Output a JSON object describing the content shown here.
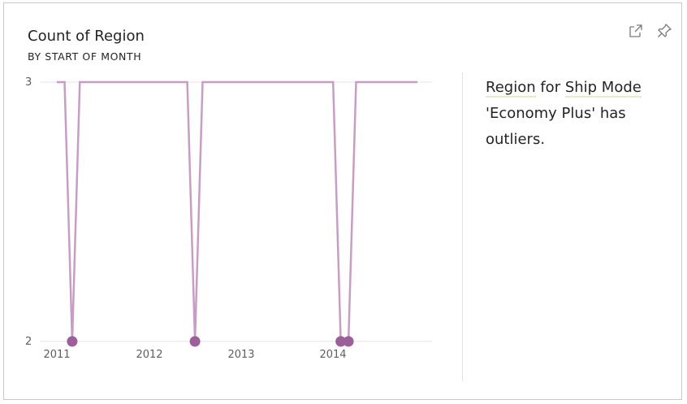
{
  "card": {
    "title": "Count of Region",
    "subtitle": "BY START OF MONTH"
  },
  "toolbar": {
    "expand_icon": "expand-icon",
    "pin_icon": "pin-icon"
  },
  "insight": {
    "term1": "Region",
    "connector1": " for ",
    "term2": "Ship Mode",
    "rest": " 'Economy Plus' has outliers."
  },
  "colors": {
    "line": "#c89dc4",
    "outlier_marker": "#9c5f9a",
    "grid": "#e6e6e6",
    "term_underline": "#e6ebc9"
  },
  "chart_data": {
    "type": "line",
    "title": "Count of Region",
    "subtitle": "BY START OF MONTH",
    "xlabel": "",
    "ylabel": "",
    "x": [
      "2011-01",
      "2011-02",
      "2011-03",
      "2011-04",
      "2011-05",
      "2011-06",
      "2011-07",
      "2011-08",
      "2011-09",
      "2011-10",
      "2011-11",
      "2011-12",
      "2012-01",
      "2012-02",
      "2012-03",
      "2012-04",
      "2012-05",
      "2012-06",
      "2012-07",
      "2012-08",
      "2012-09",
      "2012-10",
      "2012-11",
      "2012-12",
      "2013-01",
      "2013-02",
      "2013-03",
      "2013-04",
      "2013-05",
      "2013-06",
      "2013-07",
      "2013-08",
      "2013-09",
      "2013-10",
      "2013-11",
      "2013-12",
      "2014-01",
      "2014-02",
      "2014-03",
      "2014-04",
      "2014-05",
      "2014-06",
      "2014-07",
      "2014-08",
      "2014-09",
      "2014-10",
      "2014-11",
      "2014-12"
    ],
    "series": [
      {
        "values": [
          3,
          3,
          2,
          3,
          3,
          3,
          3,
          3,
          3,
          3,
          3,
          3,
          3,
          3,
          3,
          3,
          3,
          3,
          2,
          3,
          3,
          3,
          3,
          3,
          3,
          3,
          3,
          3,
          3,
          3,
          3,
          3,
          3,
          3,
          3,
          3,
          3,
          2,
          2,
          3,
          3,
          3,
          3,
          3,
          3,
          3,
          3,
          3
        ]
      }
    ],
    "outliers": [
      {
        "x": "2011-03",
        "y": 2
      },
      {
        "x": "2012-07",
        "y": 2
      },
      {
        "x": "2014-02",
        "y": 2
      },
      {
        "x": "2014-03",
        "y": 2
      }
    ],
    "ylim": [
      2,
      3
    ],
    "y_ticks": [
      "3",
      "2"
    ],
    "x_tick_labels": [
      "2011",
      "2012",
      "2013",
      "2014"
    ],
    "grid": true,
    "legend": "none"
  }
}
